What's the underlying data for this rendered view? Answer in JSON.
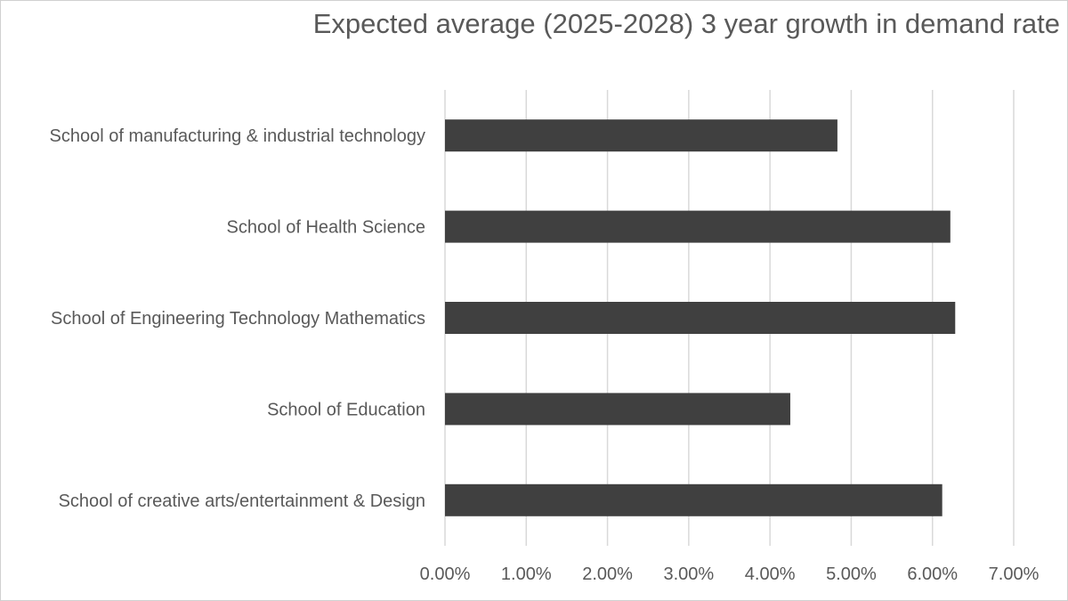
{
  "chart_data": {
    "type": "bar",
    "orientation": "horizontal",
    "title": "Expected average (2025-2028) 3 year growth in demand rate",
    "xlabel": "",
    "ylabel": "",
    "categories": [
      "School of manufacturing & industrial technology",
      "School of Health Science",
      "School of Engineering Technology Mathematics",
      "School of Education",
      "School of creative arts/entertainment & Design"
    ],
    "values": [
      0.0483,
      0.0622,
      0.0628,
      0.0425,
      0.0612
    ],
    "xlim": [
      0,
      0.07
    ],
    "ticks": [
      "0.00%",
      "1.00%",
      "2.00%",
      "3.00%",
      "4.00%",
      "5.00%",
      "6.00%",
      "7.00%"
    ],
    "grid": true,
    "legend": "none",
    "bar_color": "#404040",
    "grid_color": "#d9d9d9"
  }
}
